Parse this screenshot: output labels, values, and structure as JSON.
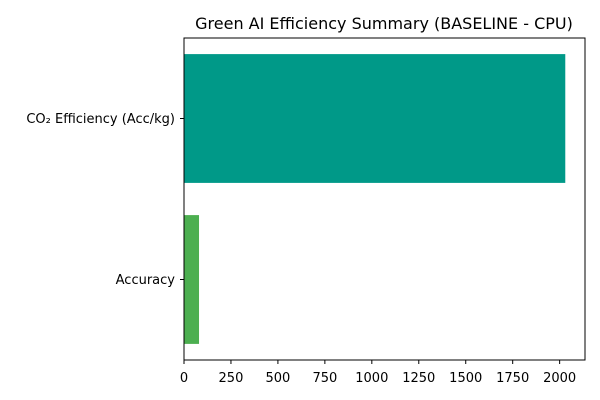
{
  "chart_data": {
    "type": "bar",
    "orientation": "horizontal",
    "title": "Green AI Efficiency Summary (BASELINE - CPU)",
    "categories": [
      "CO₂ Efficiency (Acc/kg)",
      "Accuracy"
    ],
    "values": [
      2030,
      80
    ],
    "colors": [
      "#009988",
      "#4caf50"
    ],
    "xlabel": "",
    "ylabel": "",
    "xlim": [
      0,
      2135
    ],
    "xticks": [
      0,
      250,
      500,
      750,
      1000,
      1250,
      1500,
      1750,
      2000
    ],
    "grid": false,
    "legend": "none"
  }
}
